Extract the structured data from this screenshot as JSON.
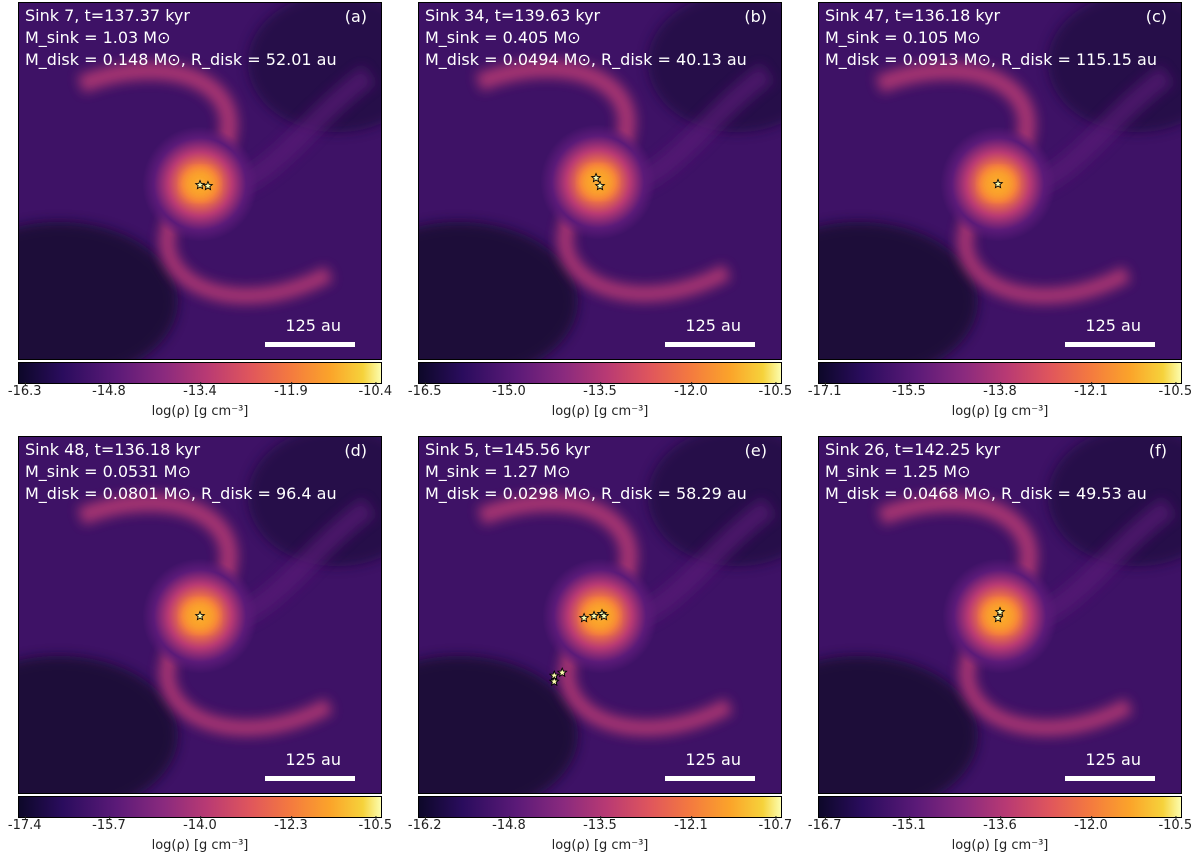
{
  "colormap": [
    "#0d0829",
    "#5b1a78",
    "#b93a73",
    "#f47a3f",
    "#fba42a",
    "#fcfdae"
  ],
  "colorbar_label": "log(ρ) [g cm⁻³]",
  "scale_bar_label": "125 au",
  "panels": [
    {
      "tag": "(a)",
      "sink": "Sink 7, t=137.37 kyr",
      "msink": "M_sink = 1.03 M⊙",
      "mdisk_rdisk": "M_disk = 0.148 M⊙, R_disk = 52.01 au",
      "ticks": [
        "-16.3",
        "-14.8",
        "-13.4",
        "-11.9",
        "-10.4"
      ]
    },
    {
      "tag": "(b)",
      "sink": "Sink 34, t=139.63 kyr",
      "msink": "M_sink = 0.405 M⊙",
      "mdisk_rdisk": "M_disk = 0.0494 M⊙, R_disk = 40.13 au",
      "ticks": [
        "-16.5",
        "-15.0",
        "-13.5",
        "-12.0",
        "-10.5"
      ]
    },
    {
      "tag": "(c)",
      "sink": "Sink 47, t=136.18 kyr",
      "msink": "M_sink = 0.105 M⊙",
      "mdisk_rdisk": "M_disk = 0.0913 M⊙, R_disk = 115.15 au",
      "ticks": [
        "-17.1",
        "-15.5",
        "-13.8",
        "-12.1",
        "-10.5"
      ]
    },
    {
      "tag": "(d)",
      "sink": "Sink 48, t=136.18 kyr",
      "msink": "M_sink = 0.0531 M⊙",
      "mdisk_rdisk": "M_disk = 0.0801 M⊙, R_disk = 96.4 au",
      "ticks": [
        "-17.4",
        "-15.7",
        "-14.0",
        "-12.3",
        "-10.5"
      ]
    },
    {
      "tag": "(e)",
      "sink": "Sink 5, t=145.56 kyr",
      "msink": "M_sink = 1.27 M⊙",
      "mdisk_rdisk": "M_disk = 0.0298 M⊙, R_disk = 58.29 au",
      "ticks": [
        "-16.2",
        "-14.8",
        "-13.5",
        "-12.1",
        "-10.7"
      ]
    },
    {
      "tag": "(f)",
      "sink": "Sink 26, t=142.25 kyr",
      "msink": "M_sink = 1.25 M⊙",
      "mdisk_rdisk": "M_disk = 0.0468 M⊙, R_disk = 49.53 au",
      "ticks": [
        "-16.7",
        "-15.1",
        "-13.6",
        "-12.0",
        "-10.5"
      ]
    }
  ]
}
